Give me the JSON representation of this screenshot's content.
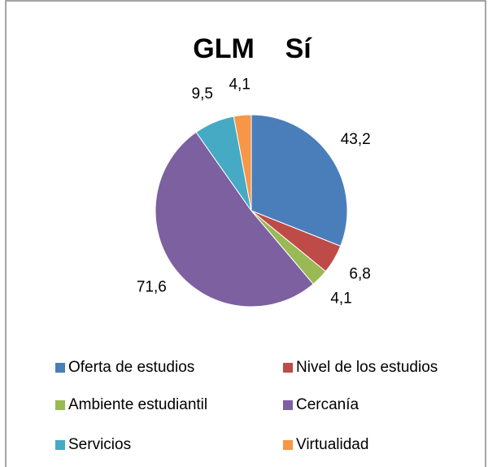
{
  "chart_data": {
    "type": "pie",
    "title": "GLM    Sí",
    "categories": [
      "Oferta de estudios",
      "Nivel de los estudios",
      "Ambiente estudiantil",
      "Cercanía",
      "Servicios",
      "Virtualidad"
    ],
    "values": [
      43.2,
      6.8,
      4.1,
      71.6,
      9.5,
      4.1
    ],
    "value_labels": [
      "43,2",
      "6,8",
      "4,1",
      "71,6",
      "9,5",
      "4,1"
    ],
    "colors": [
      "#4a7ebb",
      "#be4b48",
      "#98b954",
      "#7d60a0",
      "#46aac5",
      "#f79646"
    ],
    "legend": "bottom"
  }
}
